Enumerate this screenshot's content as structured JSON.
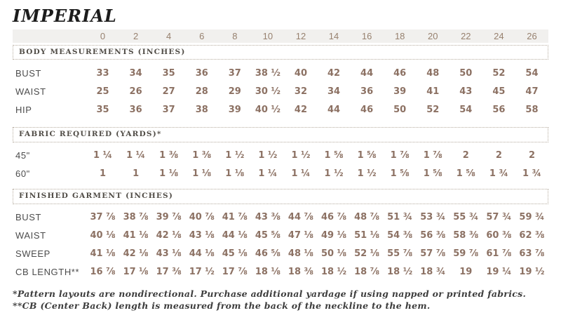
{
  "title": "IMPERIAL",
  "sizes": [
    "0",
    "2",
    "4",
    "6",
    "8",
    "10",
    "12",
    "14",
    "16",
    "18",
    "20",
    "22",
    "24",
    "26"
  ],
  "sections": [
    {
      "title": "BODY MEASUREMENTS (INCHES)",
      "rows": [
        {
          "label": "BUST",
          "values": [
            "33",
            "34",
            "35",
            "36",
            "37",
            "38 ½",
            "40",
            "42",
            "44",
            "46",
            "48",
            "50",
            "52",
            "54"
          ]
        },
        {
          "label": "WAIST",
          "values": [
            "25",
            "26",
            "27",
            "28",
            "29",
            "30 ½",
            "32",
            "34",
            "36",
            "39",
            "41",
            "43",
            "45",
            "47"
          ]
        },
        {
          "label": "HIP",
          "values": [
            "35",
            "36",
            "37",
            "38",
            "39",
            "40 ½",
            "42",
            "44",
            "46",
            "50",
            "52",
            "54",
            "56",
            "58"
          ]
        }
      ]
    },
    {
      "title": "FABRIC REQUIRED (YARDS)*",
      "rows": [
        {
          "label": "45\"",
          "values": [
            "1 ¼",
            "1 ¼",
            "1 ⅜",
            "1 ⅜",
            "1 ½",
            "1 ½",
            "1 ½",
            "1 ⅝",
            "1 ⅝",
            "1 ⅞",
            "1 ⅞",
            "2",
            "2",
            "2"
          ]
        },
        {
          "label": "60\"",
          "values": [
            "1",
            "1",
            "1 ⅛",
            "1 ⅛",
            "1 ⅛",
            "1 ¼",
            "1 ¼",
            "1 ½",
            "1 ½",
            "1 ⅝",
            "1 ⅝",
            "1 ⅝",
            "1 ¾",
            "1 ¾"
          ]
        }
      ]
    },
    {
      "title": "FINISHED GARMENT (INCHES)",
      "rows": [
        {
          "label": "BUST",
          "values": [
            "37 ⅞",
            "38 ⅞",
            "39 ⅞",
            "40 ⅞",
            "41 ⅞",
            "43 ⅜",
            "44 ⅞",
            "46 ⅞",
            "48 ⅞",
            "51 ¾",
            "53 ¾",
            "55 ¾",
            "57 ¾",
            "59 ¾"
          ]
        },
        {
          "label": "WAIST",
          "values": [
            "40 ⅛",
            "41 ⅛",
            "42 ⅛",
            "43 ⅛",
            "44 ⅛",
            "45 ⅝",
            "47 ⅛",
            "49 ⅛",
            "51 ⅛",
            "54 ⅜",
            "56 ⅜",
            "58 ⅜",
            "60 ⅜",
            "62 ⅜"
          ]
        },
        {
          "label": "SWEEP",
          "values": [
            "41 ⅛",
            "42 ⅛",
            "43 ⅛",
            "44 ⅛",
            "45 ⅛",
            "46 ⅝",
            "48 ⅛",
            "50 ⅛",
            "52 ⅛",
            "55 ⅞",
            "57 ⅞",
            "59 ⅞",
            "61 ⅞",
            "63 ⅞"
          ]
        },
        {
          "label": "CB LENGTH**",
          "values": [
            "16 ⅞",
            "17 ⅛",
            "17 ⅜",
            "17 ½",
            "17 ⅞",
            "18 ⅛",
            "18 ⅜",
            "18 ½",
            "18 ⅞",
            "18 ½",
            "18 ¾",
            "19",
            "19 ¼",
            "19 ½"
          ]
        }
      ]
    }
  ],
  "footnotes": [
    "*Pattern layouts are nondirectional. Purchase additional yardage if using napped or printed fabrics.",
    "**CB (Center Back) length is measured from the back of the neckline to the hem."
  ],
  "colors": {
    "value_text": "#8c7163",
    "size_header_text": "#97816f",
    "label_text": "#4c4c4c",
    "band_bg": "#f1f0ee",
    "dotted_border": "#b6ac9f",
    "section_title_text": "#514d47",
    "footnote_text": "#3d3d3d",
    "divider": "#dcd8d2"
  }
}
